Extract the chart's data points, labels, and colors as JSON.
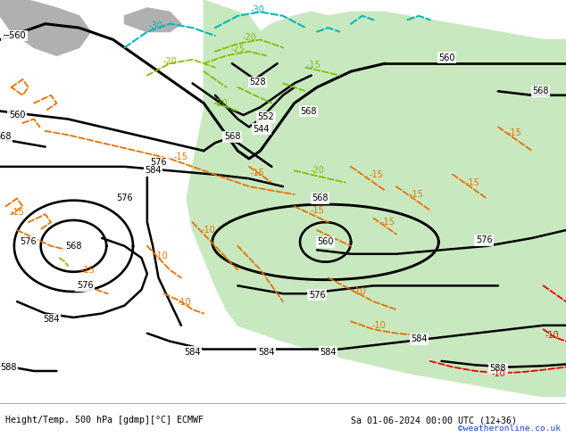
{
  "title_left": "Height/Temp. 500 hPa [gdmp][°C] ECMWF",
  "title_right": "Sa 01-06-2024 00:00 UTC (12+36)",
  "watermark": "©weatheronline.co.uk",
  "bg_land_light": "#c8e8c0",
  "bg_sea": "#c8c8c8",
  "bg_grey_land": "#b0b0b0",
  "contour_z": "#000000",
  "contour_orange": "#e87000",
  "contour_green": "#80c000",
  "contour_cyan": "#00b8b8",
  "contour_red": "#e80000",
  "fig_width": 6.34,
  "fig_height": 4.9,
  "dpi": 100
}
